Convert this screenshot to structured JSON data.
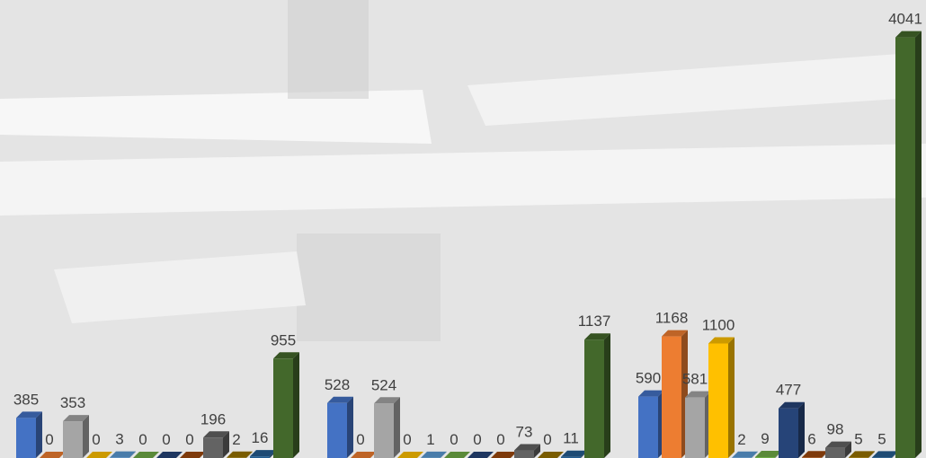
{
  "chart_data": {
    "type": "bar3d",
    "categories": [
      null,
      null,
      null
    ],
    "series": [
      {
        "color": "#4472c4",
        "values": [
          385,
          528,
          590
        ]
      },
      {
        "color": "#ed7d31",
        "values": [
          0,
          0,
          1168
        ]
      },
      {
        "color": "#a5a5a5",
        "values": [
          353,
          524,
          581
        ]
      },
      {
        "color": "#ffc000",
        "values": [
          0,
          0,
          1100
        ]
      },
      {
        "color": "#5b9bd5",
        "values": [
          3,
          1,
          2
        ]
      },
      {
        "color": "#70ad47",
        "values": [
          0,
          0,
          9
        ]
      },
      {
        "color": "#264478",
        "values": [
          0,
          0,
          477
        ]
      },
      {
        "color": "#9e480e",
        "values": [
          0,
          0,
          6
        ]
      },
      {
        "color": "#636363",
        "values": [
          196,
          73,
          98
        ]
      },
      {
        "color": "#997300",
        "values": [
          2,
          0,
          5
        ]
      },
      {
        "color": "#255e91",
        "values": [
          16,
          11,
          5
        ]
      },
      {
        "color": "#43682b",
        "values": [
          955,
          1137,
          4041
        ]
      }
    ],
    "ylim": [
      0,
      4400
    ]
  }
}
